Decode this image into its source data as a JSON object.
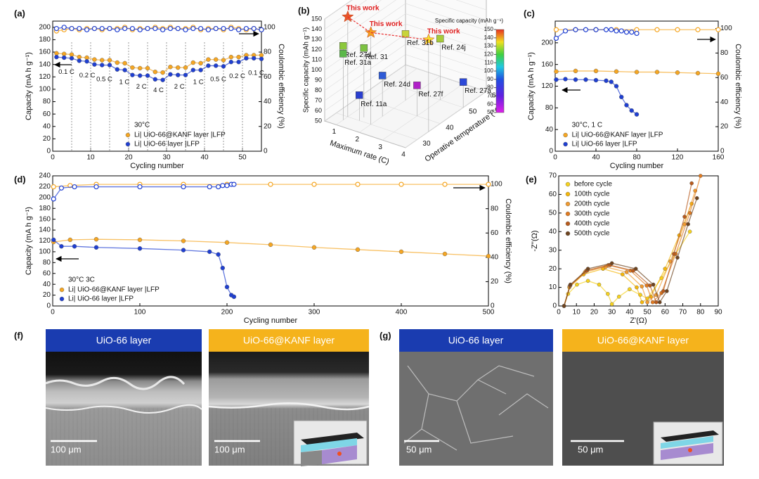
{
  "panel_labels": [
    "(a)",
    "(b)",
    "(c)",
    "(d)",
    "(e)",
    "(f)",
    "(g)"
  ],
  "chart_data": [
    {
      "type": "line",
      "xlabel": "Cycling number",
      "ylabel": "Capacity (mA h g⁻¹)",
      "y2label": "Coulombic efficiency (%)",
      "xlim": [
        0,
        55
      ],
      "xticks": [
        0,
        10,
        20,
        30,
        40,
        50
      ],
      "ylim": [
        0,
        210
      ],
      "yticks": [
        0,
        20,
        40,
        60,
        80,
        100,
        120,
        140,
        160,
        180,
        200
      ],
      "y2lim": [
        0,
        105
      ],
      "y2ticks": [
        0,
        20,
        40,
        60,
        80,
        100
      ],
      "note": "30°C",
      "legend": "lower center",
      "annotations": [
        "0.1 C",
        "0.2 C",
        "0.5 C",
        "1 C",
        "2 C",
        "4 C",
        "2 C",
        "1 C",
        "0.5 C",
        "0.2 C",
        "0.1 C"
      ],
      "series": [
        {
          "name": "Li| UiO-66@KANF layer |LFP",
          "color": "#f5a623",
          "marker": "filled",
          "x": [
            1,
            3,
            5,
            7,
            9,
            11,
            13,
            15,
            17,
            19,
            21,
            23,
            25,
            27,
            29,
            31,
            33,
            35,
            37,
            39,
            41,
            43,
            45,
            47,
            49,
            51,
            53,
            55
          ],
          "values": [
            158,
            157,
            156,
            152,
            151,
            148,
            147,
            147,
            143,
            142,
            135,
            134,
            134,
            128,
            127,
            136,
            135,
            135,
            143,
            142,
            148,
            148,
            147,
            152,
            152,
            155,
            155,
            155
          ]
        },
        {
          "name": "Li| UiO-66 layer |LFP",
          "color": "#1f3fd1",
          "marker": "filled",
          "x": [
            1,
            3,
            5,
            7,
            9,
            11,
            13,
            15,
            17,
            19,
            21,
            23,
            25,
            27,
            29,
            31,
            33,
            35,
            37,
            39,
            41,
            43,
            45,
            47,
            49,
            51,
            53,
            55
          ],
          "values": [
            152,
            151,
            150,
            146,
            145,
            140,
            139,
            139,
            132,
            131,
            123,
            122,
            122,
            116,
            115,
            124,
            123,
            123,
            131,
            131,
            138,
            138,
            137,
            144,
            144,
            150,
            150,
            149
          ]
        },
        {
          "color": "#f5a623",
          "marker": "hollow",
          "axis": "y2",
          "x": [
            1,
            3,
            5,
            7,
            9,
            11,
            13,
            15,
            17,
            19,
            21,
            23,
            25,
            27,
            29,
            31,
            33,
            35,
            37,
            39,
            41,
            43,
            45,
            47,
            49,
            51,
            53,
            55
          ],
          "values": [
            97,
            98,
            99,
            98,
            99,
            99,
            98,
            99,
            99,
            100,
            98,
            99,
            99,
            100,
            99,
            100,
            99,
            99,
            100,
            98,
            99,
            99,
            98,
            100,
            99,
            98,
            99,
            98
          ]
        },
        {
          "color": "#1f3fd1",
          "marker": "hollow",
          "axis": "y2",
          "x": [
            1,
            3,
            5,
            7,
            9,
            11,
            13,
            15,
            17,
            19,
            21,
            23,
            25,
            27,
            29,
            31,
            33,
            35,
            37,
            39,
            41,
            43,
            45,
            47,
            49,
            51,
            53,
            55
          ],
          "values": [
            99,
            100,
            99,
            99,
            98,
            99,
            99,
            99,
            98,
            99,
            99,
            98,
            99,
            99,
            98,
            99,
            99,
            98,
            99,
            99,
            98,
            99,
            99,
            99,
            98,
            99,
            99,
            98
          ]
        }
      ]
    },
    {
      "type": "scatter3d",
      "xlabel": "Maximum rate (C)",
      "ylabel": "Operative temperature (°C)",
      "zlabel": "Specific capacity (mAh g⁻¹)",
      "xlim": [
        0.5,
        4
      ],
      "xticks": [
        1,
        2,
        3,
        4
      ],
      "ylim": [
        25,
        60
      ],
      "yticks": [
        30,
        40,
        50,
        60
      ],
      "zlim": [
        50,
        150
      ],
      "zticks": [
        50,
        60,
        70,
        80,
        90,
        100,
        110,
        120,
        130,
        140,
        150
      ],
      "colorbar": {
        "title": "Specific capacity (mAh g⁻¹)",
        "lim": [
          50,
          150
        ],
        "ticks": [
          50,
          60,
          70,
          80,
          90,
          100,
          110,
          120,
          130,
          140,
          150
        ]
      },
      "points": [
        {
          "label": "This work",
          "x": 1,
          "y": 30,
          "z": 148,
          "color": "#e8542a",
          "marker": "star"
        },
        {
          "label": "This work",
          "x": 2,
          "y": 30,
          "z": 140,
          "color": "#f5a020",
          "marker": "star"
        },
        {
          "label": "This work",
          "x": 4,
          "y": 35,
          "z": 140,
          "color": "#f6e030",
          "marker": "star"
        },
        {
          "label": "Ref. 27d",
          "x": 0.8,
          "y": 30,
          "z": 118,
          "color": "#8cc83c",
          "marker": "cube"
        },
        {
          "label": "Ref. 31a",
          "x": 1,
          "y": 28,
          "z": 115,
          "color": "#5cb84a",
          "marker": "cube"
        },
        {
          "label": "Ref. 31",
          "x": 1.5,
          "y": 32,
          "z": 118,
          "color": "#7cc242",
          "marker": "cube"
        },
        {
          "label": "Ref. 31b",
          "x": 2,
          "y": 45,
          "z": 115,
          "color": "#c8d43a",
          "marker": "cube"
        },
        {
          "label": "Ref. 24j",
          "x": 3,
          "y": 50,
          "z": 110,
          "color": "#a8cc3a",
          "marker": "cube"
        },
        {
          "label": "Ref. 24d",
          "x": 2,
          "y": 35,
          "z": 90,
          "color": "#2f5bd6",
          "marker": "cube"
        },
        {
          "label": "Ref. 11a",
          "x": 1.5,
          "y": 30,
          "z": 75,
          "color": "#2a3fd0",
          "marker": "cube"
        },
        {
          "label": "Ref. 27f",
          "x": 3,
          "y": 40,
          "z": 80,
          "color": "#b020c8",
          "marker": "cube"
        },
        {
          "label": "Ref. 27a",
          "x": 4,
          "y": 50,
          "z": 75,
          "color": "#2d49d8",
          "marker": "cube"
        }
      ]
    },
    {
      "type": "line",
      "xlabel": "Cycling number",
      "ylabel": "Capacity (mA h g⁻¹)",
      "y2label": "Coulombic efficiency (%)",
      "xlim": [
        0,
        160
      ],
      "xticks": [
        0,
        40,
        80,
        120,
        160
      ],
      "ylim": [
        0,
        240
      ],
      "yticks": [
        0,
        40,
        80,
        120,
        160,
        200
      ],
      "y2lim": [
        0,
        106
      ],
      "y2ticks": [
        0,
        20,
        40,
        60,
        80,
        100
      ],
      "note": "30°C, 1 C",
      "legend": "lower right",
      "series": [
        {
          "name": "Li| UiO-66@KANF layer |LFP",
          "color": "#f5a623",
          "marker": "filled",
          "x": [
            1,
            20,
            40,
            60,
            80,
            100,
            120,
            140,
            160
          ],
          "values": [
            147,
            148,
            148,
            147,
            146,
            146,
            145,
            144,
            143
          ]
        },
        {
          "name": "Li| UiO-66 layer |LFP",
          "color": "#1f3fd1",
          "marker": "filled",
          "x": [
            1,
            10,
            20,
            30,
            40,
            50,
            55,
            60,
            65,
            70,
            75,
            80
          ],
          "values": [
            132,
            133,
            132,
            132,
            131,
            130,
            128,
            120,
            100,
            85,
            75,
            68
          ]
        },
        {
          "color": "#f5a623",
          "marker": "hollow",
          "axis": "y2",
          "x": [
            1,
            20,
            40,
            60,
            80,
            100,
            120,
            140,
            160
          ],
          "values": [
            99,
            99,
            99,
            99,
            99,
            99,
            99,
            99,
            99
          ]
        },
        {
          "color": "#1f3fd1",
          "marker": "hollow",
          "axis": "y2",
          "x": [
            1,
            10,
            20,
            30,
            40,
            50,
            55,
            60,
            65,
            70,
            75,
            80
          ],
          "values": [
            92,
            98,
            99,
            99,
            99,
            99,
            99,
            98,
            98,
            97,
            97,
            96
          ]
        }
      ]
    },
    {
      "type": "line",
      "xlabel": "Cycling number",
      "ylabel": "Capacity (mA h g⁻¹)",
      "y2label": "Coulombic efficiency (%)",
      "xlim": [
        0,
        500
      ],
      "xticks": [
        0,
        100,
        200,
        300,
        400,
        500
      ],
      "ylim": [
        0,
        240
      ],
      "yticks": [
        0,
        20,
        40,
        60,
        80,
        100,
        120,
        140,
        160,
        180,
        200,
        220,
        240
      ],
      "y2lim": [
        0,
        107
      ],
      "y2ticks": [
        0,
        20,
        40,
        60,
        80,
        100
      ],
      "note": "30°C  3C",
      "legend": "lower left",
      "series": [
        {
          "name": "Li| UiO-66@KANF layer |LFP",
          "color": "#f5a623",
          "marker": "filled",
          "x": [
            1,
            20,
            50,
            100,
            150,
            200,
            250,
            300,
            350,
            400,
            450,
            500
          ],
          "values": [
            118,
            122,
            123,
            122,
            120,
            117,
            113,
            108,
            104,
            100,
            96,
            92
          ]
        },
        {
          "name": "Li| UiO-66 layer |LFP",
          "color": "#1f3fd1",
          "marker": "filled",
          "x": [
            1,
            10,
            25,
            50,
            100,
            150,
            180,
            190,
            195,
            200,
            205,
            208
          ],
          "values": [
            122,
            110,
            110,
            108,
            106,
            103,
            100,
            95,
            70,
            35,
            20,
            17
          ]
        },
        {
          "color": "#f5a623",
          "marker": "hollow",
          "axis": "y2",
          "x": [
            1,
            20,
            50,
            100,
            150,
            200,
            250,
            300,
            350,
            400,
            450,
            500
          ],
          "values": [
            98,
            99,
            100,
            100,
            100,
            100,
            100,
            100,
            100,
            100,
            100,
            100
          ]
        },
        {
          "color": "#1f3fd1",
          "marker": "hollow",
          "axis": "y2",
          "x": [
            1,
            10,
            25,
            50,
            100,
            150,
            180,
            190,
            195,
            200,
            205,
            208
          ],
          "values": [
            88,
            97,
            98,
            98,
            98,
            98,
            98,
            98,
            99,
            99,
            100,
            100
          ]
        }
      ]
    },
    {
      "type": "line",
      "xlabel": "Z'(Ω)",
      "ylabel": "-Z''(Ω)",
      "xlim": [
        0,
        90
      ],
      "xticks": [
        0,
        10,
        20,
        30,
        40,
        50,
        60,
        70,
        80,
        90
      ],
      "ylim": [
        0,
        70
      ],
      "yticks": [
        0,
        10,
        20,
        30,
        40,
        50,
        60,
        70
      ],
      "legend": "upper left",
      "series": [
        {
          "name": "before cycle",
          "color": "#f6d21e",
          "marker": "filled",
          "x": [
            3,
            5.3,
            10.3,
            16.5,
            22.8,
            27.7,
            30,
            34,
            40,
            46,
            50,
            58,
            66,
            74
          ],
          "values": [
            0,
            6.5,
            11.5,
            13.5,
            11.5,
            6.5,
            1,
            5,
            9,
            6,
            4,
            15,
            28,
            40
          ]
        },
        {
          "name": "100th cycle",
          "color": "#f5b70a",
          "marker": "filled",
          "x": [
            3,
            6,
            14,
            25,
            36,
            44,
            47,
            52,
            60,
            68,
            75
          ],
          "values": [
            0,
            10,
            17,
            20,
            17,
            10,
            2,
            5,
            20,
            38,
            55
          ]
        },
        {
          "name": "200th cycle",
          "color": "#f09a30",
          "marker": "filled",
          "x": [
            3,
            6.1,
            14.8,
            26.5,
            38.3,
            46.9,
            50,
            55,
            63,
            71,
            77
          ],
          "values": [
            0,
            10.5,
            18.2,
            21,
            18.2,
            10.5,
            2,
            6,
            24,
            44,
            62
          ]
        },
        {
          "name": "300th cycle",
          "color": "#e07a20",
          "marker": "filled",
          "x": [
            3,
            6.4,
            15.5,
            28,
            40.5,
            49.6,
            53,
            58,
            66,
            74,
            80
          ],
          "values": [
            0,
            11,
            19,
            22,
            19,
            11,
            2,
            7,
            28,
            50,
            70
          ]
        },
        {
          "name": "400th cycle",
          "color": "#b85a1c",
          "marker": "filled",
          "x": [
            3,
            6.5,
            16,
            29,
            42,
            51.5,
            55,
            59,
            65,
            71,
            75
          ],
          "values": [
            0,
            11,
            19,
            22,
            19,
            11,
            2,
            8,
            28,
            48,
            66
          ]
        },
        {
          "name": "500th cycle",
          "color": "#6e4420",
          "marker": "filled",
          "x": [
            3,
            6.6,
            16.5,
            30,
            43.5,
            53.4,
            57,
            61,
            67,
            73,
            78
          ],
          "values": [
            0,
            11.5,
            20,
            23,
            20,
            11.5,
            2,
            8,
            26,
            44,
            58
          ]
        }
      ]
    }
  ],
  "sem_images": [
    {
      "header": "UiO-66 layer",
      "scale_bar": "100 μm"
    },
    {
      "header": "UiO-66@KANF layer",
      "scale_bar": "100 μm"
    },
    {
      "header": "UiO-66 layer",
      "scale_bar": "50 μm"
    },
    {
      "header": "UiO-66@KANF layer",
      "scale_bar": "50 μm"
    }
  ]
}
